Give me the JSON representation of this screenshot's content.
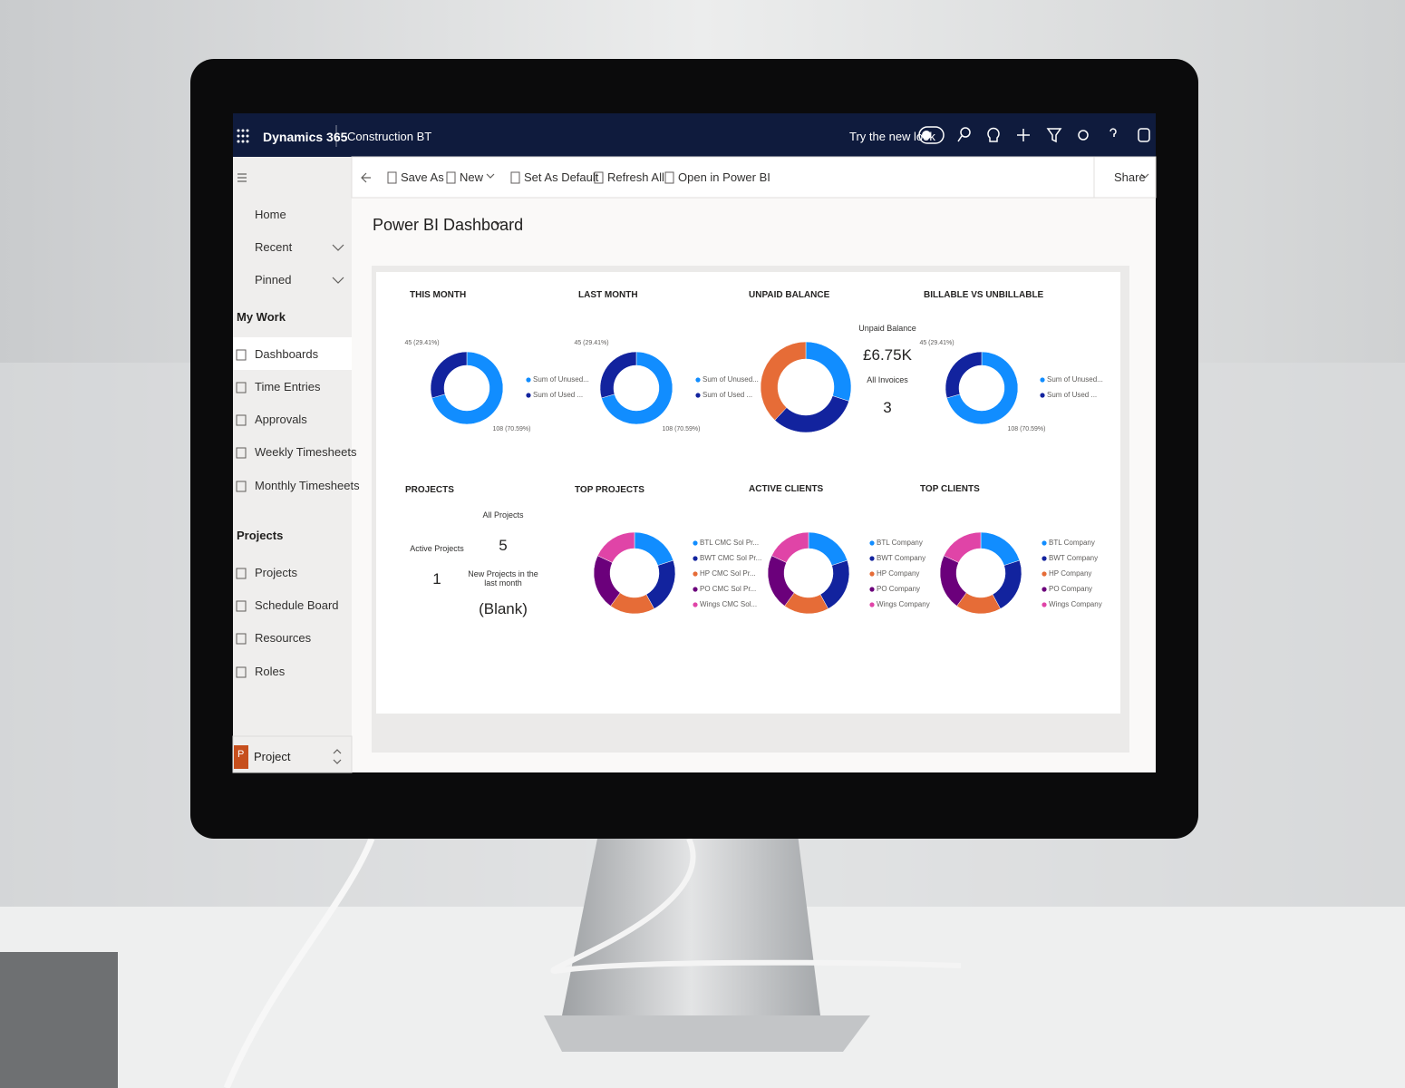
{
  "topbar": {
    "app": "Dynamics 365",
    "area": "Construction BT",
    "try_new": "Try the new look"
  },
  "nav": {
    "top": [
      "Home",
      "Recent",
      "Pinned"
    ],
    "sections": [
      {
        "title": "My Work",
        "items": [
          "Dashboards",
          "Time Entries",
          "Approvals",
          "Weekly Timesheets",
          "Monthly Timesheets"
        ]
      },
      {
        "title": "Projects",
        "items": [
          "Projects",
          "Schedule Board",
          "Resources",
          "Roles"
        ]
      }
    ],
    "area_switch": {
      "icon": "P",
      "label": "Project"
    }
  },
  "commands": [
    "Save As",
    "New",
    "Set As Default",
    "Refresh All",
    "Open in Power BI"
  ],
  "share": "Share",
  "dashboard_title": "Power BI Dashboard",
  "tiles": [
    {
      "type": "donut",
      "title": "THIS MONTH",
      "segments": [
        {
          "name": "Sum of Unused...",
          "color": "#118dff",
          "value": 108,
          "label": "108 (70.59%)"
        },
        {
          "name": "Sum of Used ...",
          "color": "#12239e",
          "value": 45,
          "label": "45 (29.41%)"
        }
      ]
    },
    {
      "type": "donut",
      "title": "LAST MONTH",
      "segments": [
        {
          "name": "Sum of Unused...",
          "color": "#118dff",
          "value": 108,
          "label": "108 (70.59%)"
        },
        {
          "name": "Sum of Used ...",
          "color": "#12239e",
          "value": 45,
          "label": "45 (29.41%)"
        }
      ]
    },
    {
      "type": "donut",
      "title": "UNPAID BALANCE",
      "segments": [
        {
          "color": "#118dff",
          "value": 30
        },
        {
          "color": "#12239e",
          "value": 32
        },
        {
          "color": "#e66c37",
          "value": 38
        }
      ],
      "cards": [
        {
          "label": "Unpaid Balance",
          "value": "£6.75K"
        },
        {
          "label": "All Invoices",
          "value": "3"
        }
      ]
    },
    {
      "type": "donut",
      "title": "BILLABLE VS UNBILLABLE",
      "segments": [
        {
          "name": "Sum of Unused...",
          "color": "#118dff",
          "value": 108,
          "label": "108 (70.59%)"
        },
        {
          "name": "Sum of Used ...",
          "color": "#12239e",
          "value": 45,
          "label": "45 (29.41%)"
        }
      ]
    },
    {
      "type": "cards",
      "title": "PROJECTS",
      "cards": [
        {
          "label": "All Projects",
          "value": "5"
        },
        {
          "label": "Active Projects",
          "value": "1"
        },
        {
          "label": "New Projects in the last month",
          "value": "(Blank)"
        }
      ]
    },
    {
      "type": "donut",
      "title": "TOP PROJECTS",
      "segments": [
        {
          "name": "BTL CMC Sol Pr...",
          "color": "#118dff",
          "value": 20
        },
        {
          "name": "BWT CMC Sol Pr...",
          "color": "#12239e",
          "value": 22
        },
        {
          "name": "HP CMC Sol Pr...",
          "color": "#e66c37",
          "value": 18
        },
        {
          "name": "PO CMC Sol Pr...",
          "color": "#6b007b",
          "value": 22
        },
        {
          "name": "Wings CMC Sol...",
          "color": "#e044a7",
          "value": 18
        }
      ]
    },
    {
      "type": "donut",
      "title": "ACTIVE CLIENTS",
      "segments": [
        {
          "name": "BTL Company",
          "color": "#118dff",
          "value": 20
        },
        {
          "name": "BWT Company",
          "color": "#12239e",
          "value": 22
        },
        {
          "name": "HP Company",
          "color": "#e66c37",
          "value": 18
        },
        {
          "name": "PO Company",
          "color": "#6b007b",
          "value": 22
        },
        {
          "name": "Wings Company",
          "color": "#e044a7",
          "value": 18
        }
      ]
    },
    {
      "type": "donut",
      "title": "TOP CLIENTS",
      "segments": [
        {
          "name": "BTL Company",
          "color": "#118dff",
          "value": 20
        },
        {
          "name": "BWT Company",
          "color": "#12239e",
          "value": 22
        },
        {
          "name": "HP Company",
          "color": "#e66c37",
          "value": 18
        },
        {
          "name": "PO Company",
          "color": "#6b007b",
          "value": 22
        },
        {
          "name": "Wings Company",
          "color": "#e044a7",
          "value": 18
        }
      ]
    }
  ]
}
